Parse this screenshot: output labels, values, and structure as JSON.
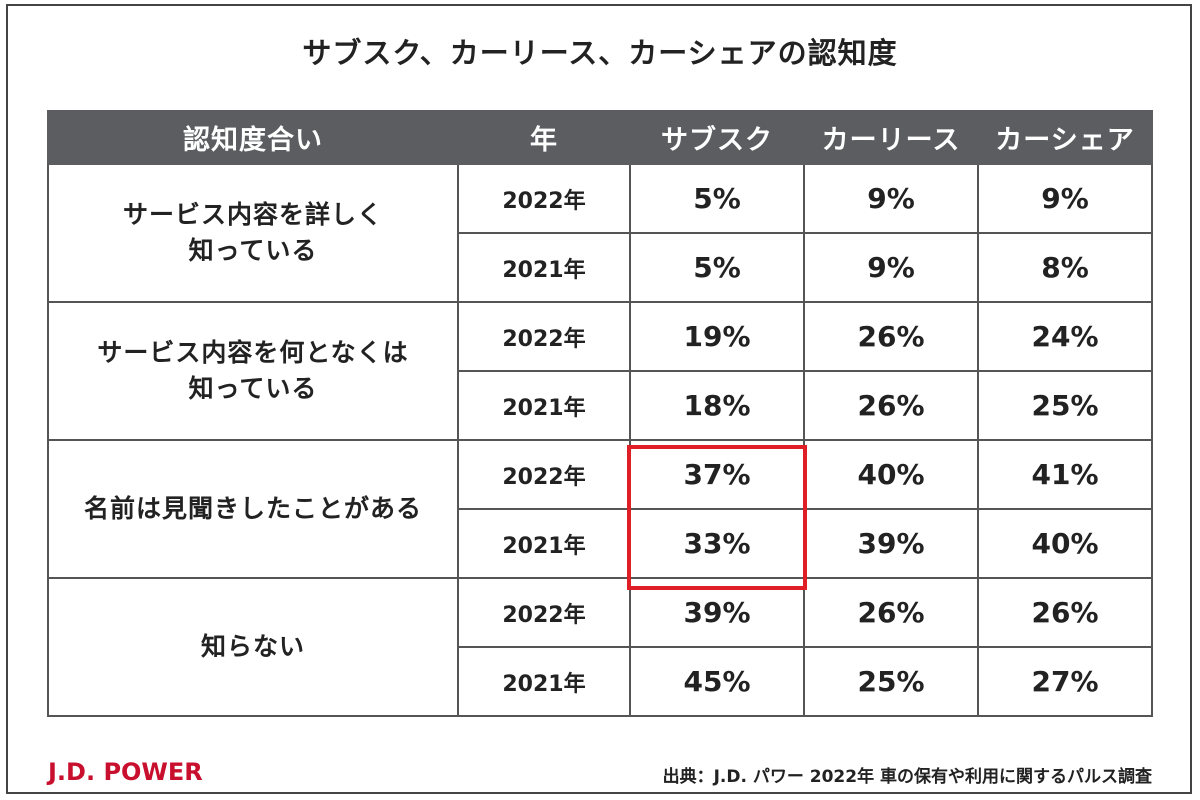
{
  "title": "サブスク、カーリース、カーシェアの認知度",
  "table": {
    "headers": [
      "認知度合い",
      "年",
      "サブスク",
      "カーリース",
      "カーシェア"
    ],
    "groups": [
      {
        "category_line1": "サービス内容を詳しく",
        "category_line2": "知っている",
        "rows": [
          {
            "year": "2022年",
            "values": [
              "5%",
              "9%",
              "9%"
            ]
          },
          {
            "year": "2021年",
            "values": [
              "5%",
              "9%",
              "8%"
            ]
          }
        ]
      },
      {
        "category_line1": "サービス内容を何となくは",
        "category_line2": "知っている",
        "rows": [
          {
            "year": "2022年",
            "values": [
              "19%",
              "26%",
              "24%"
            ]
          },
          {
            "year": "2021年",
            "values": [
              "18%",
              "26%",
              "25%"
            ]
          }
        ]
      },
      {
        "category_line1": "名前は見聞きしたことがある",
        "category_line2": "",
        "rows": [
          {
            "year": "2022年",
            "values": [
              "37%",
              "40%",
              "41%"
            ]
          },
          {
            "year": "2021年",
            "values": [
              "33%",
              "39%",
              "40%"
            ]
          }
        ]
      },
      {
        "category_line1": "知らない",
        "category_line2": "",
        "rows": [
          {
            "year": "2022年",
            "values": [
              "39%",
              "26%",
              "26%"
            ]
          },
          {
            "year": "2021年",
            "values": [
              "45%",
              "25%",
              "27%"
            ]
          }
        ]
      }
    ]
  },
  "colors": {
    "header_bg": "#5b5d61",
    "highlight": "#e01e25",
    "brand": "#c8102e"
  },
  "footer": {
    "brand": "J.D. POWER",
    "source": "出典：J.D. パワー 2022年 車の保有や利用に関するパルス調査"
  }
}
